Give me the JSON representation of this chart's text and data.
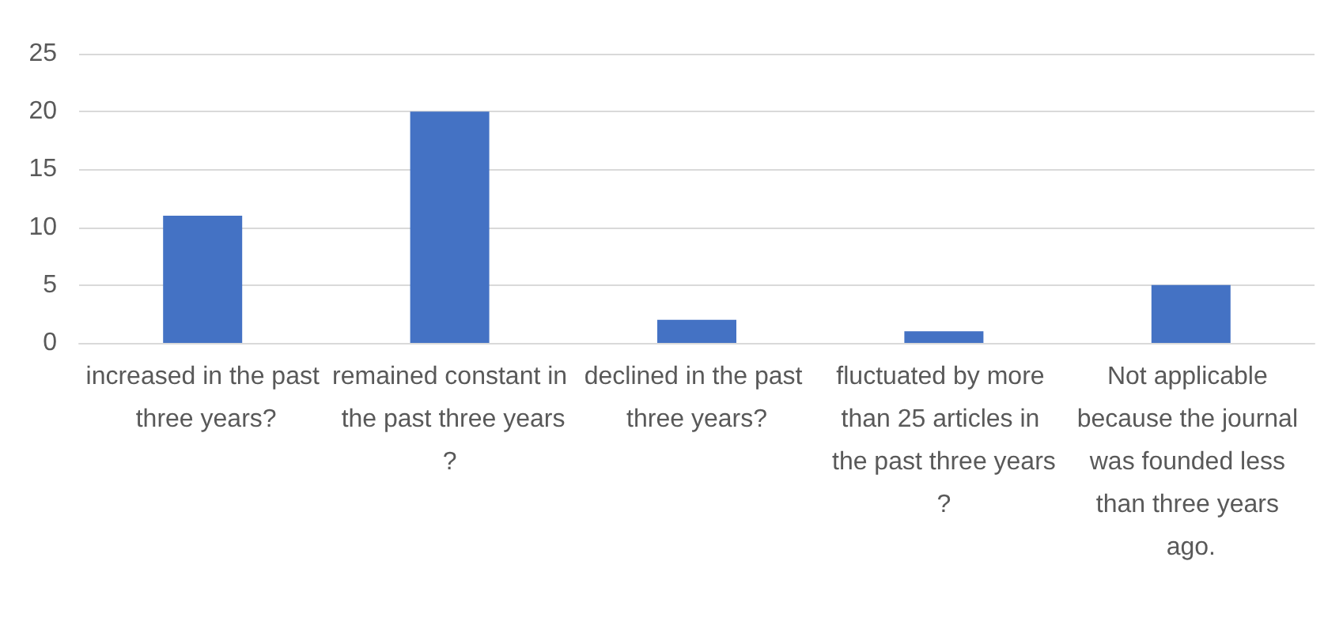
{
  "chart_data": {
    "type": "bar",
    "categories": [
      "increased in the past three years?",
      "remained constant in the past three years?",
      "declined in the past three years?",
      "fluctuated by more than 25 articles in the past three years?",
      "Not applicable because the journal was founded less than three years ago."
    ],
    "values": [
      11,
      20,
      2,
      1,
      5
    ],
    "color": "#4472c4",
    "ylim": [
      0,
      25
    ],
    "yticks": [
      0,
      5,
      10,
      15,
      20,
      25
    ],
    "grid": "y"
  }
}
